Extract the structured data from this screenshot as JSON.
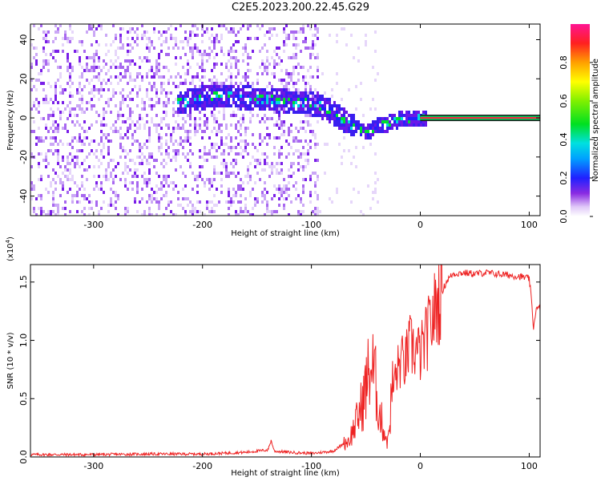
{
  "title": "C2E5.2023.200.22.45.G29",
  "chart_data": [
    {
      "type": "heatmap",
      "xlabel": "Height of straight line (km)",
      "ylabel": "Frequency (Hz)",
      "xlim": [
        -358,
        110
      ],
      "ylim": [
        -50,
        48
      ],
      "xticks": [
        -300,
        -200,
        -100,
        0,
        100
      ],
      "yticks": [
        -40,
        -20,
        0,
        20,
        40
      ],
      "colorbar": {
        "label": "Normalized spectral amplitude",
        "range": [
          0.0,
          1.0
        ],
        "ticks": [
          "0.0",
          "0.2",
          "0.4",
          "0.6",
          "0.8"
        ]
      },
      "signal_track": {
        "x_km": [
          -225,
          -200,
          -180,
          -160,
          -140,
          -120,
          -100,
          -90,
          -80,
          -70,
          -60,
          -50,
          -40,
          -30,
          -20,
          -10,
          0,
          110
        ],
        "freq_hz": [
          8,
          11,
          12,
          11,
          10,
          9,
          8,
          6,
          3,
          -1,
          -4,
          -7,
          -3,
          -2,
          0,
          0,
          1,
          0
        ]
      }
    },
    {
      "type": "line",
      "xlabel": "Height of straight line (km)",
      "ylabel": "SNR (10 * v/v)",
      "y_multiplier": "(x10",
      "y_multiplier_exp": "4",
      "y_multiplier_close": ")",
      "xlim": [
        -358,
        110
      ],
      "ylim": [
        0,
        1.65
      ],
      "xticks": [
        -300,
        -200,
        -100,
        0,
        100
      ],
      "yticks": [
        "0.0",
        "0.5",
        "1.0",
        "1.5"
      ],
      "series": [
        {
          "color": "#ee2222",
          "x": [
            -358,
            -300,
            -250,
            -200,
            -160,
            -140,
            -137,
            -134,
            -120,
            -100,
            -80,
            -65,
            -58,
            -52,
            -46,
            -42,
            -38,
            -34,
            -30,
            -26,
            -22,
            -18,
            -14,
            -10,
            -5,
            0,
            5,
            10,
            15,
            20,
            25,
            30,
            40,
            50,
            60,
            70,
            80,
            90,
            100,
            102,
            104,
            106,
            110
          ],
          "y": [
            0.02,
            0.02,
            0.025,
            0.025,
            0.04,
            0.06,
            0.14,
            0.05,
            0.04,
            0.03,
            0.05,
            0.15,
            0.32,
            0.5,
            0.78,
            0.7,
            0.4,
            0.25,
            0.12,
            0.55,
            0.72,
            0.82,
            0.8,
            0.95,
            0.92,
            0.88,
            1.0,
            1.15,
            1.3,
            1.42,
            1.52,
            1.57,
            1.58,
            1.57,
            1.58,
            1.57,
            1.56,
            1.55,
            1.53,
            1.35,
            1.1,
            1.26,
            1.28
          ]
        }
      ]
    }
  ]
}
